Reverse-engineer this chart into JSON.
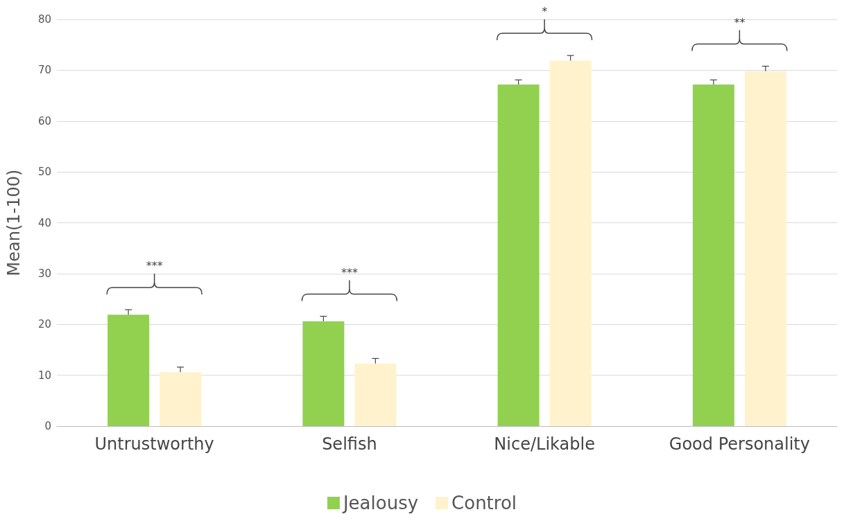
{
  "chart_data": {
    "type": "bar",
    "ylabel": "Mean(1-100)",
    "categories": [
      "Untrustworthy",
      "Selfish",
      "Nice/Likable",
      "Good Personality"
    ],
    "series": [
      {
        "name": "Jealousy",
        "color": "#92d050",
        "values": [
          21.9,
          20.6,
          67.2,
          67.2
        ],
        "errors": [
          [
            21.9,
            22.9
          ],
          [
            20.6,
            21.6
          ],
          [
            67.2,
            68.1
          ],
          [
            67.2,
            68.1
          ]
        ]
      },
      {
        "name": "Control",
        "color": "#fff2cc",
        "values": [
          10.6,
          12.3,
          71.9,
          69.8
        ],
        "errors": [
          [
            10.6,
            11.6
          ],
          [
            12.3,
            13.3
          ],
          [
            71.9,
            72.9
          ],
          [
            69.8,
            70.8
          ]
        ]
      }
    ],
    "ylim": [
      0,
      80
    ],
    "yticks": [
      0,
      10,
      20,
      30,
      40,
      50,
      60,
      70,
      80
    ],
    "grid": "y",
    "legend": "bottom",
    "annotations": [
      "***",
      "***",
      "*",
      "**"
    ]
  }
}
